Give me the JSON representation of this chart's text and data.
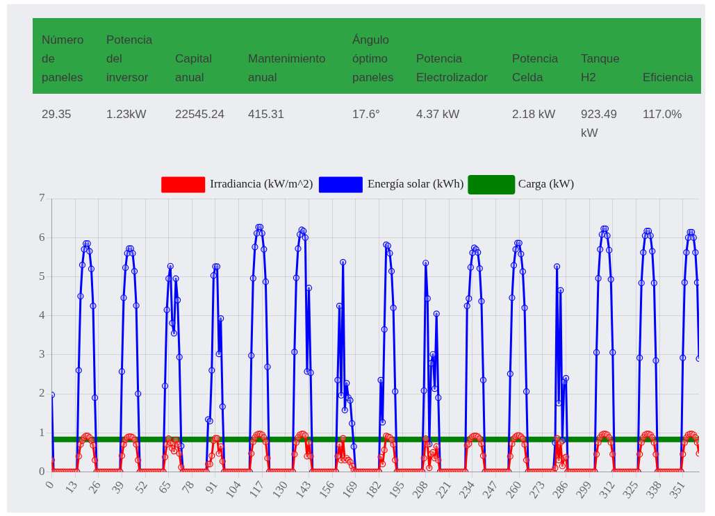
{
  "chart_data": [
    {
      "type": "other",
      "categories": [
        "Número de paneles",
        "Potencia del inversor",
        "Capital anual",
        "Mantenimiento anual",
        "Ángulo óptimo paneles",
        "Potencia Electrolizador",
        "Potencia Celda",
        "Tanque H2",
        "Eficiencia"
      ],
      "value_labels": [
        "29.35",
        "1.23kW",
        "22545.24",
        "415.31",
        "17.6°",
        "4.37 kW",
        "2.18 kW",
        "923.49 kW",
        "117.0%"
      ]
    },
    {
      "type": "line",
      "legend": "top",
      "grid": true,
      "marker": "circle",
      "xlim": [
        0,
        360
      ],
      "ylim": [
        0,
        7
      ],
      "xticks": [
        0,
        13,
        26,
        39,
        52,
        65,
        78,
        91,
        104,
        117,
        130,
        143,
        156,
        169,
        182,
        195,
        208,
        221,
        234,
        247,
        260,
        273,
        286,
        299,
        312,
        325,
        338,
        351
      ],
      "yticks": [
        0,
        1,
        2,
        3,
        4,
        5,
        6,
        7
      ],
      "x": [
        0,
        1,
        2,
        3,
        4,
        5,
        6,
        7,
        8,
        9,
        10,
        11,
        12,
        13,
        14,
        15,
        16,
        17,
        18,
        19,
        20,
        21,
        22,
        23,
        24,
        25,
        26,
        27,
        28,
        29,
        30,
        31,
        32,
        33,
        34,
        35,
        36,
        37,
        38,
        39,
        40,
        41,
        42,
        43,
        44,
        45,
        46,
        47,
        48,
        49,
        50,
        51,
        52,
        53,
        54,
        55,
        56,
        57,
        58,
        59,
        60,
        61,
        62,
        63,
        64,
        65,
        66,
        67,
        68,
        69,
        70,
        71,
        72,
        73,
        74,
        75,
        76,
        77,
        78,
        79,
        80,
        81,
        82,
        83,
        84,
        85,
        86,
        87,
        88,
        89,
        90,
        91,
        92,
        93,
        94,
        95,
        96,
        97,
        98,
        99,
        100,
        101,
        102,
        103,
        104,
        105,
        106,
        107,
        108,
        109,
        110,
        111,
        112,
        113,
        114,
        115,
        116,
        117,
        118,
        119,
        120,
        121,
        122,
        123,
        124,
        125,
        126,
        127,
        128,
        129,
        130,
        131,
        132,
        133,
        134,
        135,
        136,
        137,
        138,
        139,
        140,
        141,
        142,
        143,
        144,
        145,
        146,
        147,
        148,
        149,
        150,
        151,
        152,
        153,
        154,
        155,
        156,
        157,
        158,
        159,
        160,
        161,
        162,
        163,
        164,
        165,
        166,
        167,
        168,
        169,
        170,
        171,
        172,
        173,
        174,
        175,
        176,
        177,
        178,
        179,
        180,
        181,
        182,
        183,
        184,
        185,
        186,
        187,
        188,
        189,
        190,
        191,
        192,
        193,
        194,
        195,
        196,
        197,
        198,
        199,
        200,
        201,
        202,
        203,
        204,
        205,
        206,
        207,
        208,
        209,
        210,
        211,
        212,
        213,
        214,
        215,
        216,
        217,
        218,
        219,
        220,
        221,
        222,
        223,
        224,
        225,
        226,
        227,
        228,
        229,
        230,
        231,
        232,
        233,
        234,
        235,
        236,
        237,
        238,
        239,
        240,
        241,
        242,
        243,
        244,
        245,
        246,
        247,
        248,
        249,
        250,
        251,
        252,
        253,
        254,
        255,
        256,
        257,
        258,
        259,
        260,
        261,
        262,
        263,
        264,
        265,
        266,
        267,
        268,
        269,
        270,
        271,
        272,
        273,
        274,
        275,
        276,
        277,
        278,
        279,
        280,
        281,
        282,
        283,
        284,
        285,
        286,
        287,
        288,
        289,
        290,
        291,
        292,
        293,
        294,
        295,
        296,
        297,
        298,
        299,
        300,
        301,
        302,
        303,
        304,
        305,
        306,
        307,
        308,
        309,
        310,
        311,
        312,
        313,
        314,
        315,
        316,
        317,
        318,
        319,
        320,
        321,
        322,
        323,
        324,
        325,
        326,
        327,
        328,
        329,
        330,
        331,
        332,
        333,
        334,
        335,
        336,
        337,
        338,
        339,
        340,
        341,
        342,
        343,
        344,
        345,
        346,
        347,
        348,
        349,
        350,
        351,
        352,
        353,
        354,
        355,
        356,
        357,
        358,
        359,
        360
      ],
      "series": [
        {
          "name": "Irradiancia (kW/m^2)",
          "color": "#ff0000",
          "values": [
            0.3,
            0,
            0,
            0,
            0,
            0,
            0,
            0,
            0,
            0,
            0,
            0,
            0,
            0,
            0,
            0.4,
            0.7,
            0.8,
            0.88,
            0.92,
            0.92,
            0.88,
            0.8,
            0.68,
            0.3,
            0,
            0,
            0,
            0,
            0,
            0,
            0,
            0,
            0,
            0,
            0,
            0,
            0,
            0,
            0.41,
            0.7,
            0.82,
            0.88,
            0.9,
            0.9,
            0.88,
            0.82,
            0.7,
            0.3,
            0,
            0,
            0,
            0,
            0,
            0,
            0,
            0,
            0,
            0,
            0,
            0,
            0,
            0,
            0.38,
            0.7,
            0.85,
            0.74,
            0.6,
            0.53,
            0.82,
            0.7,
            0.47,
            0.12,
            0,
            0,
            0,
            0,
            0,
            0,
            0,
            0,
            0,
            0,
            0,
            0,
            0,
            0,
            0.2,
            0.2,
            0.41,
            0.8,
            0.86,
            0.86,
            0.47,
            0.65,
            0.27,
            0,
            0,
            0,
            0,
            0,
            0,
            0,
            0,
            0,
            0,
            0,
            0,
            0,
            0,
            0,
            0.47,
            0.77,
            0.88,
            0.95,
            0.97,
            0.97,
            0.95,
            0.88,
            0.77,
            0.35,
            0,
            0,
            0,
            0,
            0,
            0,
            0,
            0,
            0,
            0,
            0,
            0,
            0,
            0,
            0.45,
            0.75,
            0.88,
            0.95,
            0.97,
            0.97,
            0.93,
            0.4,
            0.75,
            0.4,
            0,
            0,
            0,
            0,
            0,
            0,
            0,
            0,
            0,
            0,
            0,
            0,
            0,
            0,
            0.4,
            0.7,
            0.3,
            0.86,
            0.3,
            0.35,
            0.3,
            0.25,
            0.15,
            0.05,
            0,
            0,
            0,
            0,
            0,
            0,
            0,
            0,
            0,
            0,
            0,
            0,
            0,
            0,
            0.38,
            0.2,
            0.56,
            0.92,
            0.9,
            0.88,
            0.82,
            0.7,
            0.3,
            0,
            0,
            0,
            0,
            0,
            0,
            0,
            0,
            0,
            0,
            0,
            0,
            0,
            0,
            0,
            0.35,
            0.85,
            0.7,
            0.1,
            0.45,
            0.5,
            0.35,
            0.65,
            0.3,
            0,
            0,
            0,
            0,
            0,
            0,
            0,
            0,
            0,
            0,
            0,
            0,
            0,
            0,
            0,
            0.68,
            0.72,
            0.85,
            0.9,
            0.92,
            0.92,
            0.9,
            0.85,
            0.72,
            0.41,
            0,
            0,
            0,
            0,
            0,
            0,
            0,
            0,
            0,
            0,
            0,
            0,
            0,
            0,
            0.4,
            0.72,
            0.85,
            0.9,
            0.93,
            0.93,
            0.9,
            0.85,
            0.7,
            0.3,
            0,
            0,
            0,
            0,
            0,
            0,
            0,
            0,
            0,
            0,
            0,
            0,
            0,
            0,
            0,
            0.1,
            0.86,
            0.3,
            0.75,
            0.15,
            0.35,
            0.38,
            0,
            0,
            0,
            0,
            0,
            0,
            0,
            0,
            0,
            0,
            0,
            0,
            0,
            0,
            0,
            0,
            0.45,
            0.75,
            0.88,
            0.95,
            0.97,
            0.97,
            0.95,
            0.88,
            0.75,
            0.45,
            0,
            0,
            0,
            0,
            0,
            0,
            0,
            0,
            0,
            0,
            0,
            0,
            0,
            0,
            0.45,
            0.75,
            0.88,
            0.95,
            0.97,
            0.97,
            0.95,
            0.88,
            0.75,
            0.45,
            0,
            0,
            0,
            0,
            0,
            0,
            0,
            0,
            0,
            0,
            0,
            0,
            0,
            0,
            0.45,
            0.75,
            0.88,
            0.95,
            0.97,
            0.97,
            0.95,
            0.88,
            0.75,
            0.47
          ]
        },
        {
          "name": "Energía solar (kWh)",
          "color": "#0000ff",
          "values": [
            1.97,
            0,
            null,
            null,
            null,
            null,
            null,
            null,
            null,
            null,
            null,
            null,
            null,
            null,
            0,
            2.6,
            4.5,
            5.3,
            5.7,
            5.85,
            5.85,
            5.65,
            5.2,
            4.25,
            1.9,
            0,
            null,
            null,
            null,
            null,
            null,
            null,
            null,
            null,
            null,
            null,
            null,
            null,
            0,
            2.57,
            4.46,
            5.23,
            5.6,
            5.72,
            5.72,
            5.6,
            5.14,
            4.26,
            2.0,
            0,
            null,
            null,
            null,
            null,
            null,
            null,
            null,
            null,
            null,
            null,
            null,
            null,
            0,
            2.2,
            4.15,
            4.95,
            5.27,
            3.81,
            3.55,
            4.95,
            4.4,
            2.94,
            0.66,
            0,
            null,
            null,
            null,
            null,
            null,
            null,
            null,
            null,
            null,
            null,
            null,
            null,
            0,
            1.34,
            1.3,
            2.6,
            5.03,
            5.26,
            5.26,
            3.02,
            3.93,
            1.67,
            0,
            null,
            null,
            null,
            null,
            null,
            null,
            null,
            null,
            null,
            null,
            null,
            null,
            null,
            0,
            2.98,
            4.96,
            5.76,
            6.11,
            6.27,
            6.27,
            6.11,
            5.7,
            4.87,
            2.69,
            0,
            null,
            null,
            null,
            null,
            null,
            null,
            null,
            null,
            null,
            null,
            null,
            null,
            0,
            3.07,
            4.97,
            5.72,
            6.08,
            6.2,
            6.17,
            6.0,
            2.57,
            4.71,
            2.54,
            0,
            null,
            null,
            null,
            null,
            null,
            null,
            null,
            null,
            null,
            null,
            null,
            null,
            0,
            2.35,
            4.25,
            1.96,
            5.37,
            1.58,
            2.27,
            1.9,
            1.83,
            1.24,
            0.65,
            0,
            null,
            null,
            null,
            null,
            null,
            null,
            null,
            null,
            null,
            null,
            null,
            null,
            0,
            2.35,
            1.27,
            3.65,
            5.82,
            5.79,
            5.6,
            5.14,
            4.2,
            2.06,
            0,
            null,
            null,
            null,
            null,
            null,
            null,
            null,
            null,
            null,
            null,
            null,
            null,
            null,
            0,
            2.08,
            5.35,
            4.44,
            0.71,
            2.78,
            3.01,
            2.13,
            4.05,
            1.9,
            0,
            null,
            null,
            null,
            null,
            null,
            null,
            null,
            null,
            null,
            null,
            null,
            null,
            null,
            0,
            4.25,
            4.44,
            5.24,
            5.61,
            5.74,
            5.7,
            5.62,
            5.21,
            4.37,
            2.35,
            0,
            null,
            null,
            null,
            null,
            null,
            null,
            null,
            null,
            null,
            null,
            null,
            null,
            0,
            2.51,
            4.46,
            5.29,
            5.7,
            5.86,
            5.86,
            5.58,
            5.13,
            4.2,
            2.06,
            0,
            null,
            null,
            null,
            null,
            null,
            null,
            null,
            null,
            null,
            null,
            null,
            null,
            null,
            0,
            0.74,
            5.26,
            1.76,
            4.65,
            0.8,
            2.3,
            2.4,
            0,
            null,
            null,
            null,
            null,
            null,
            null,
            null,
            null,
            null,
            null,
            null,
            null,
            null,
            null,
            0,
            3.06,
            4.96,
            5.7,
            6.08,
            6.23,
            6.23,
            6.05,
            5.68,
            4.93,
            3.06,
            0,
            null,
            null,
            null,
            null,
            null,
            null,
            null,
            null,
            null,
            null,
            null,
            null,
            0,
            2.92,
            4.84,
            5.62,
            6.05,
            6.17,
            6.17,
            6.05,
            5.65,
            4.84,
            2.85,
            0,
            null,
            null,
            null,
            null,
            null,
            null,
            null,
            null,
            null,
            null,
            null,
            null,
            0,
            2.92,
            4.85,
            5.62,
            6.0,
            6.14,
            6.14,
            6.0,
            5.62,
            4.85,
            2.9
          ]
        },
        {
          "name": "Carga (kW)",
          "color": "#008000",
          "x": [
            0,
            360
          ],
          "values": [
            0.83,
            0.83
          ]
        }
      ]
    }
  ]
}
